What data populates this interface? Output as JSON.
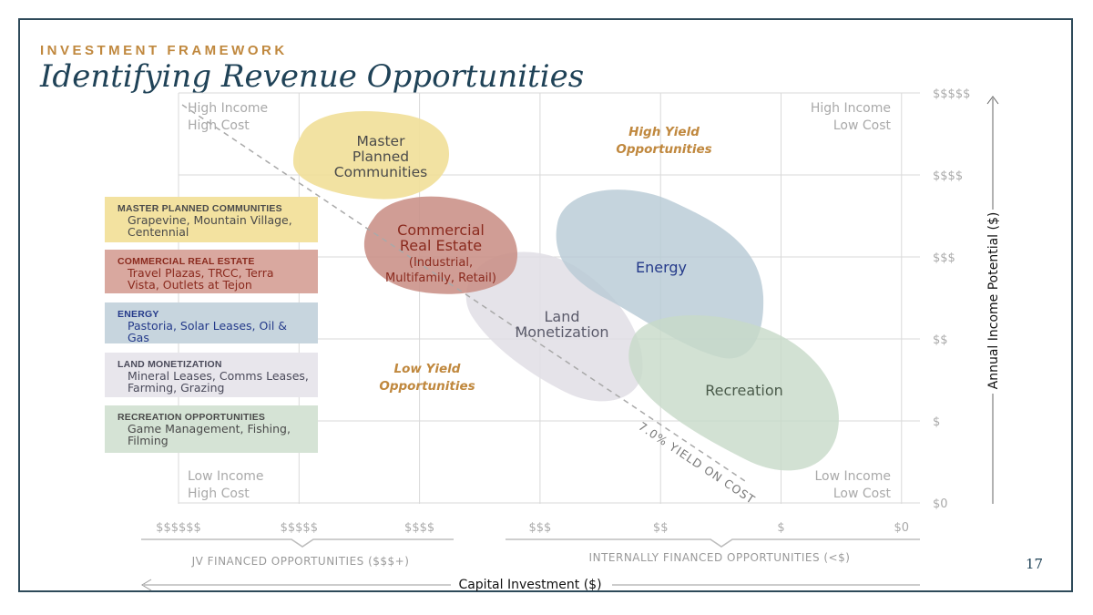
{
  "header": {
    "eyebrow": "INVESTMENT FRAMEWORK",
    "title": "Identifying Revenue Opportunities"
  },
  "page_number": "17",
  "legend": [
    {
      "heading": "MASTER PLANNED COMMUNITIES",
      "items": "Grapevine, Mountain Village, Centennial",
      "bg": "#f3e2a0",
      "color": "#4a4a4a"
    },
    {
      "heading": "COMMERCIAL REAL ESTATE",
      "items": "Travel Plazas, TRCC, Terra Vista, Outlets at Tejon",
      "bg": "#d9a89f",
      "color": "#8a2a1e"
    },
    {
      "heading": "ENERGY",
      "items": "Pastoria, Solar Leases, Oil & Gas",
      "bg": "#c7d5de",
      "color": "#243a8a"
    },
    {
      "heading": "LAND MONETIZATION",
      "items": "Mineral Leases, Comms Leases, Farming, Grazing",
      "bg": "#e8e6ec",
      "color": "#4a4a5a"
    },
    {
      "heading": "RECREATION OPPORTUNITIES",
      "items": "Game Management, Fishing, Filming",
      "bg": "#d5e3d5",
      "color": "#4a4a4a"
    }
  ],
  "colors": {
    "accent": "#c0883e",
    "title": "#1f4257",
    "master_planned": "#f1e09a",
    "commercial": "#c99086",
    "energy": "#b8cbd5",
    "land": "#e1dee5",
    "recreation": "#c7dac8",
    "grid": "#d8d8d8"
  },
  "chart_data": {
    "type": "scatter",
    "xlabel": "Capital Investment ($)",
    "ylabel": "Annual Income Potential ($)",
    "x_ticks": [
      "$$$$$$",
      "$$$$$",
      "$$$$",
      "$$$",
      "$$",
      "$",
      "$0"
    ],
    "y_ticks": [
      "$$$$$",
      "$$$$",
      "$$$",
      "$$",
      "$",
      "$0"
    ],
    "corner_labels": {
      "top_left": [
        "High Income",
        "High Cost"
      ],
      "top_right": [
        "High Income",
        "Low Cost"
      ],
      "bottom_left": [
        "Low Income",
        "High Cost"
      ],
      "bottom_right": [
        "Low Income",
        "Low Cost"
      ]
    },
    "zone_labels": {
      "high_yield": [
        "High Yield",
        "Opportunities"
      ],
      "low_yield": [
        "Low Yield",
        "Opportunities"
      ]
    },
    "yield_line_label": "7.0% YIELD ON COST",
    "bracket_labels": {
      "jv": "JV FINANCED OPPORTUNITIES ($$$+)",
      "internal": "INTERNALLY FINANCED OPPORTUNITIES (<$)"
    },
    "categories": [
      {
        "name": "Master Planned Communities",
        "label": [
          "Master",
          "Planned",
          "Communities"
        ],
        "x_range": [
          "$$$$$",
          "$$$$"
        ],
        "y_range": [
          "$$$$",
          "$$$$$"
        ]
      },
      {
        "name": "Commercial Real Estate",
        "label": [
          "Commercial",
          "Real Estate",
          "(Industrial,",
          "Multifamily, Retail)"
        ],
        "x_range": [
          "$$$$",
          "$$$"
        ],
        "y_range": [
          "$$",
          "$$$$"
        ]
      },
      {
        "name": "Energy",
        "label": [
          "Energy"
        ],
        "x_range": [
          "$$$",
          "$"
        ],
        "y_range": [
          "$$",
          "$$$$"
        ]
      },
      {
        "name": "Land Monetization",
        "label": [
          "Land",
          "Monetization"
        ],
        "x_range": [
          "$$$",
          "$$"
        ],
        "y_range": [
          "$",
          "$$$"
        ]
      },
      {
        "name": "Recreation",
        "label": [
          "Recreation"
        ],
        "x_range": [
          "$$",
          "$0"
        ],
        "y_range": [
          "$0",
          "$$"
        ]
      }
    ]
  }
}
